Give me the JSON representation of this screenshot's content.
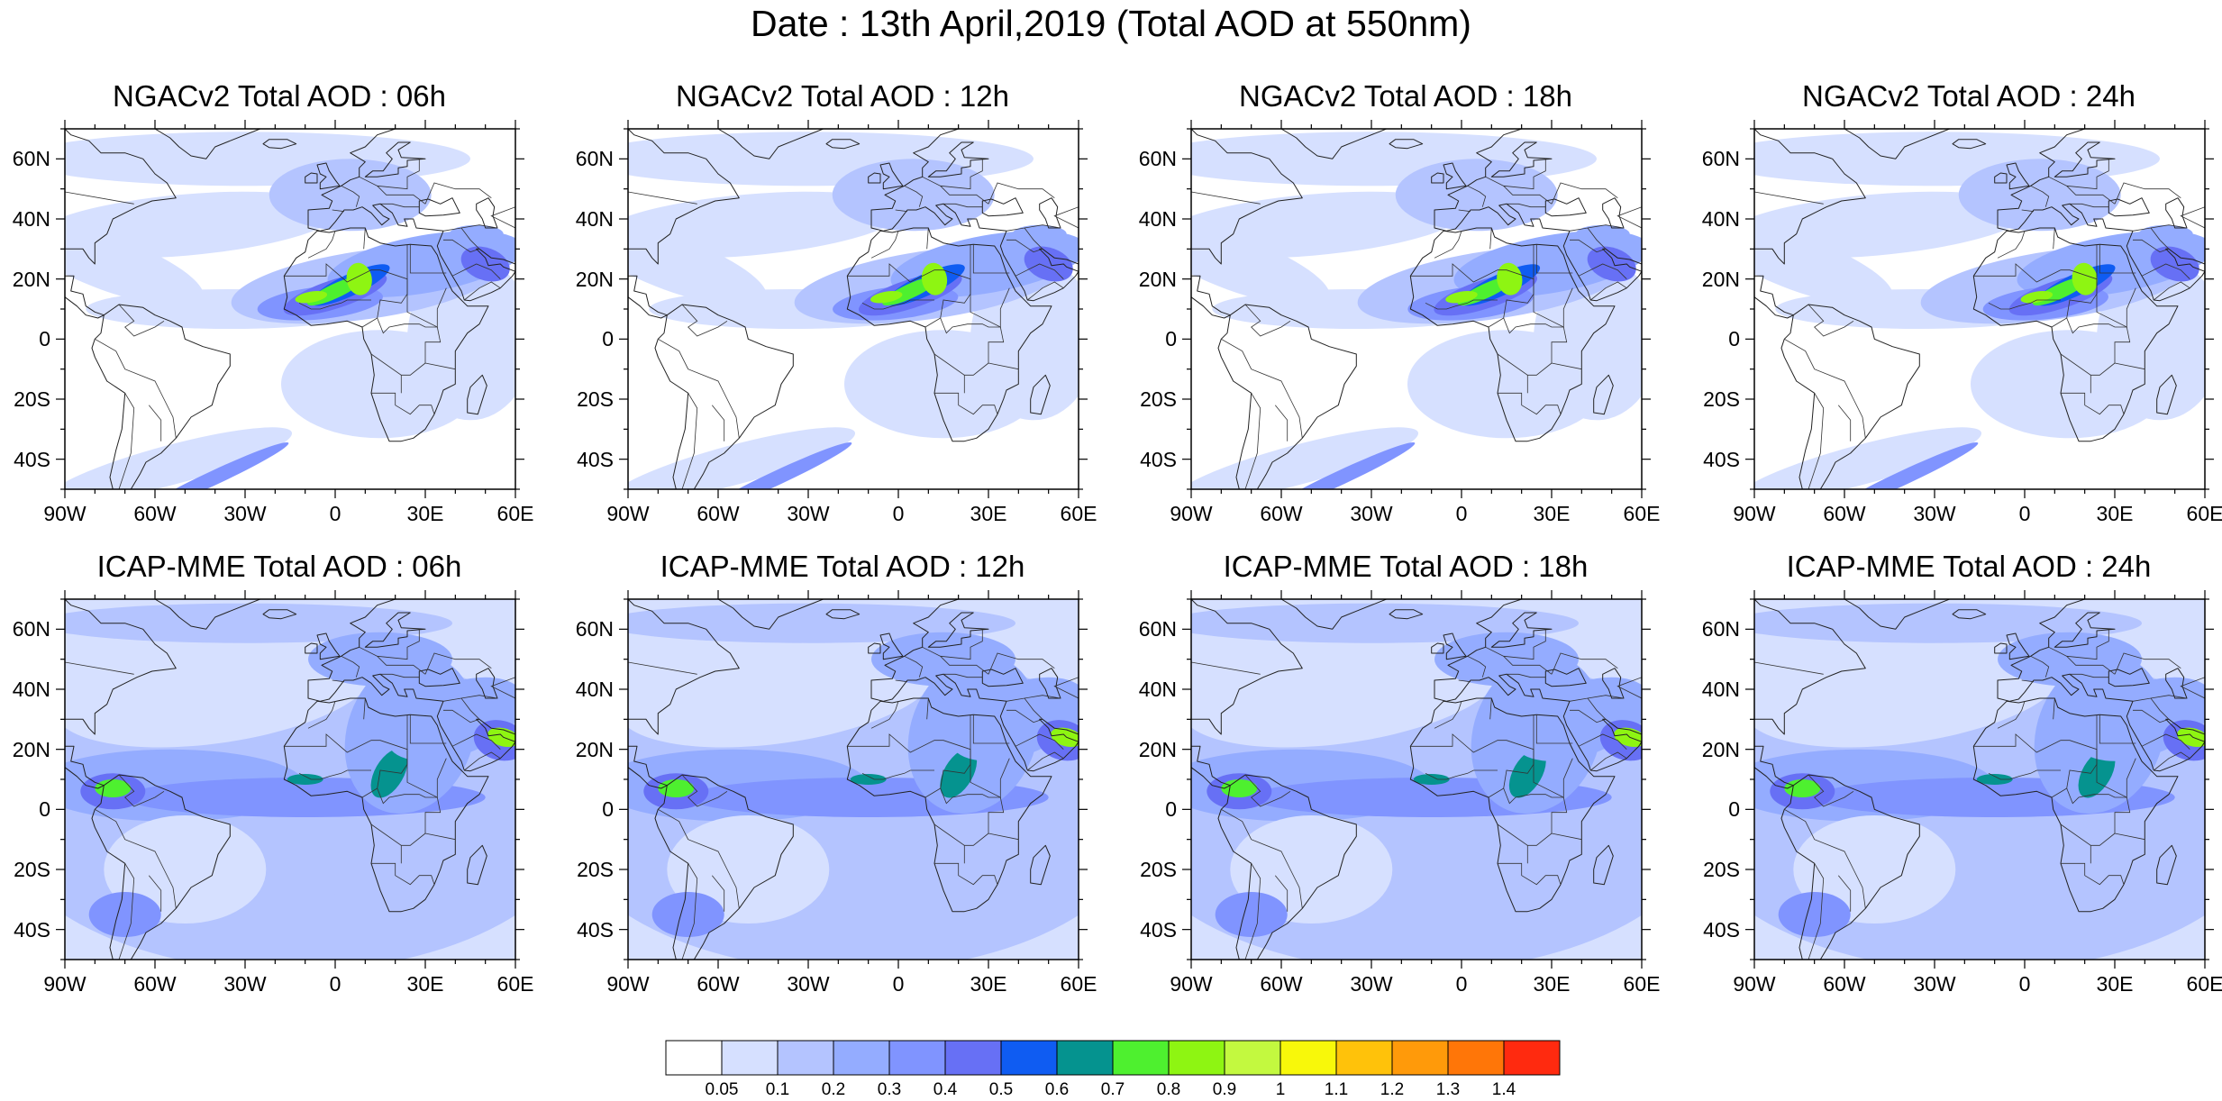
{
  "title": "Date : 13th April,2019 (Total AOD at 550nm)",
  "lat_ticks": [
    "60N",
    "40N",
    "20N",
    "0",
    "20S",
    "40S"
  ],
  "lat_values": [
    60,
    40,
    20,
    0,
    -20,
    -40
  ],
  "lon_ticks": [
    "90W",
    "60W",
    "30W",
    "0",
    "30E",
    "60E"
  ],
  "lon_values": [
    -90,
    -60,
    -30,
    0,
    30,
    60
  ],
  "map_extent": {
    "lon": [
      -90,
      60
    ],
    "lat": [
      -50,
      70
    ]
  },
  "panels": [
    {
      "title": "NGACv2 Total AOD : 06h",
      "model": "NGACv2",
      "hour": "06h"
    },
    {
      "title": "NGACv2 Total AOD : 12h",
      "model": "NGACv2",
      "hour": "12h"
    },
    {
      "title": "NGACv2 Total AOD : 18h",
      "model": "NGACv2",
      "hour": "18h"
    },
    {
      "title": "NGACv2 Total AOD : 24h",
      "model": "NGACv2",
      "hour": "24h"
    },
    {
      "title": "ICAP-MME Total AOD : 06h",
      "model": "ICAP-MME",
      "hour": "06h"
    },
    {
      "title": "ICAP-MME Total AOD : 12h",
      "model": "ICAP-MME",
      "hour": "12h"
    },
    {
      "title": "ICAP-MME Total AOD : 18h",
      "model": "ICAP-MME",
      "hour": "18h"
    },
    {
      "title": "ICAP-MME Total AOD : 24h",
      "model": "ICAP-MME",
      "hour": "24h"
    }
  ],
  "colorbar": {
    "colors": [
      "#ffffff",
      "#d6e0ff",
      "#b4c4ff",
      "#94acff",
      "#8094ff",
      "#6770f5",
      "#0f5cf2",
      "#05938f",
      "#4ef02f",
      "#8ef512",
      "#c3f93f",
      "#f8f80a",
      "#ffc20a",
      "#ff9a0a",
      "#ff7608",
      "#ff2a0f"
    ],
    "labels": [
      "0.05",
      "0.1",
      "0.2",
      "0.3",
      "0.4",
      "0.5",
      "0.6",
      "0.7",
      "0.8",
      "0.9",
      "1",
      "1.1",
      "1.2",
      "1.3",
      "1.4"
    ]
  }
}
